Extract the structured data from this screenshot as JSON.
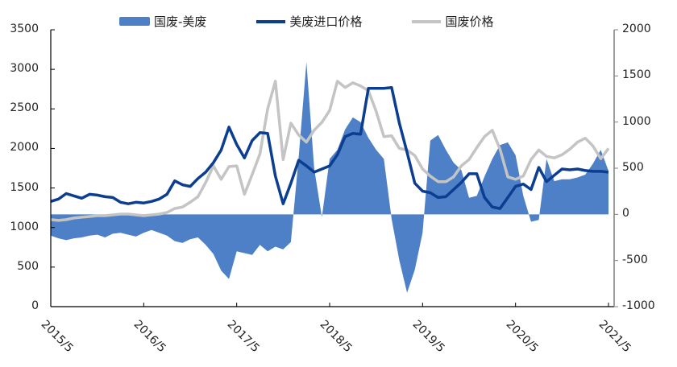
{
  "legend": {
    "spread_label": "国废-美废",
    "us_label": "美废进口价格",
    "cn_label": "国废价格"
  },
  "colors": {
    "spread": "#4d80c6",
    "us_line": "#0b3d91",
    "cn_line": "#c4c4c4",
    "axis_left": "#000000",
    "axis_right": "#7f7f7f"
  },
  "axes": {
    "left_ticks": [
      "3500",
      "3000",
      "2500",
      "2000",
      "1500",
      "1000",
      "500",
      "0"
    ],
    "right_ticks": [
      "2000",
      "1500",
      "1000",
      "500",
      "0",
      "-500",
      "-1000"
    ],
    "x_ticks": [
      "2015/5",
      "2016/5",
      "2017/5",
      "2018/5",
      "2019/5",
      "2020/5",
      "2021/5"
    ]
  },
  "chart_data": {
    "type": "line",
    "title": "",
    "xlabel": "",
    "ylabel_left": "",
    "ylabel_right": "",
    "ylim_left": [
      0,
      3500
    ],
    "ylim_right": [
      -1000,
      2000
    ],
    "grid": false,
    "legend_position": "top",
    "x_ticks": [
      "2015/5",
      "2016/5",
      "2017/5",
      "2018/5",
      "2019/5",
      "2020/5",
      "2021/5"
    ],
    "x": [
      "2015/5",
      "2015/6",
      "2015/7",
      "2015/8",
      "2015/9",
      "2015/10",
      "2015/11",
      "2015/12",
      "2016/1",
      "2016/2",
      "2016/3",
      "2016/4",
      "2016/5",
      "2016/6",
      "2016/7",
      "2016/8",
      "2016/9",
      "2016/10",
      "2016/11",
      "2016/12",
      "2017/1",
      "2017/2",
      "2017/3",
      "2017/4",
      "2017/5",
      "2017/6",
      "2017/7",
      "2017/8",
      "2017/9",
      "2017/10",
      "2017/11",
      "2017/12",
      "2018/1",
      "2018/2",
      "2018/3",
      "2018/4",
      "2018/5",
      "2018/6",
      "2018/7",
      "2018/8",
      "2018/9",
      "2018/10",
      "2018/11",
      "2018/12",
      "2019/1",
      "2019/2",
      "2019/3",
      "2019/4",
      "2019/5",
      "2019/6",
      "2019/7",
      "2019/8",
      "2019/9",
      "2019/10",
      "2019/11",
      "2019/12",
      "2020/1",
      "2020/2",
      "2020/3",
      "2020/4",
      "2020/5",
      "2020/6",
      "2020/7",
      "2020/8",
      "2020/9",
      "2020/10",
      "2020/11",
      "2020/12",
      "2021/1",
      "2021/2",
      "2021/3",
      "2021/4",
      "2021/5"
    ],
    "series": [
      {
        "name": "国废-美废",
        "type": "area",
        "axis": "right",
        "values": [
          -230,
          -260,
          -280,
          -260,
          -250,
          -230,
          -220,
          -250,
          -210,
          -200,
          -220,
          -240,
          -200,
          -170,
          -200,
          -230,
          -290,
          -310,
          -270,
          -250,
          -330,
          -430,
          -610,
          -700,
          -400,
          -420,
          -440,
          -330,
          -400,
          -350,
          -380,
          -300,
          620,
          1650,
          500,
          -30,
          600,
          700,
          920,
          1050,
          1000,
          830,
          700,
          600,
          -50,
          -500,
          -850,
          -600,
          -200,
          800,
          860,
          700,
          560,
          480,
          180,
          200,
          410,
          600,
          750,
          780,
          640,
          200,
          -80,
          -60,
          600,
          360,
          380,
          380,
          400,
          430,
          550,
          700,
          470
        ]
      },
      {
        "name": "美废进口价格",
        "type": "line",
        "axis": "left",
        "values": [
          1330,
          1360,
          1430,
          1400,
          1370,
          1420,
          1410,
          1390,
          1380,
          1320,
          1300,
          1320,
          1310,
          1330,
          1360,
          1420,
          1590,
          1540,
          1520,
          1620,
          1700,
          1820,
          1980,
          2270,
          2050,
          1880,
          2100,
          2200,
          2190,
          1650,
          1300,
          1560,
          1850,
          1780,
          1700,
          1740,
          1780,
          1920,
          2150,
          2190,
          2180,
          2760,
          2760,
          2760,
          2770,
          2320,
          1950,
          1560,
          1460,
          1440,
          1380,
          1390,
          1480,
          1570,
          1680,
          1680,
          1380,
          1260,
          1240,
          1380,
          1520,
          1550,
          1480,
          1760,
          1580,
          1660,
          1740,
          1730,
          1740,
          1720,
          1710,
          1710,
          1700
        ]
      },
      {
        "name": "国废价格",
        "type": "line",
        "axis": "left",
        "values": [
          1100,
          1090,
          1100,
          1120,
          1130,
          1140,
          1150,
          1150,
          1160,
          1170,
          1170,
          1160,
          1150,
          1160,
          1170,
          1190,
          1240,
          1260,
          1320,
          1390,
          1570,
          1780,
          1610,
          1770,
          1780,
          1420,
          1670,
          1930,
          2500,
          2850,
          1860,
          2320,
          2170,
          2080,
          2230,
          2330,
          2480,
          2850,
          2770,
          2830,
          2790,
          2730,
          2470,
          2150,
          2160,
          2000,
          1980,
          1910,
          1740,
          1650,
          1580,
          1580,
          1640,
          1780,
          1860,
          2010,
          2150,
          2230,
          1990,
          1640,
          1610,
          1650,
          1860,
          1980,
          1900,
          1880,
          1920,
          1990,
          2080,
          2130,
          2030,
          1870,
          2000
        ]
      }
    ]
  }
}
